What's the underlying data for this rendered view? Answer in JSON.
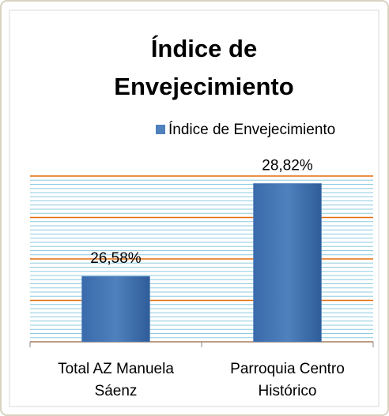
{
  "chart_data": {
    "type": "bar",
    "title": "Índice de Envejecimiento",
    "categories": [
      "Total AZ Manuela Sáenz",
      "Parroquia Centro Histórico"
    ],
    "series": [
      {
        "name": "Índice de Envejecimiento",
        "color": "#4f81bd",
        "values": [
          26.58,
          28.82
        ],
        "value_labels": [
          "26,58%",
          "28,82%"
        ]
      }
    ],
    "ylim": [
      25,
      29
    ],
    "yticks": [
      25,
      26,
      27,
      28,
      29
    ],
    "major_grid_color": "#e46c0a",
    "minor_grid_color": "#8ccbe0",
    "minor_yticks": [
      25,
      25.1,
      25.2,
      25.3,
      25.4,
      25.5,
      25.6,
      25.7,
      25.8,
      25.9,
      26,
      26.1,
      26.2,
      26.3,
      26.4,
      26.5,
      26.6,
      26.7,
      26.8,
      26.9,
      27,
      27.1,
      27.2,
      27.3,
      27.4,
      27.5,
      27.6,
      27.7,
      27.8,
      27.9,
      28,
      28.1,
      28.2,
      28.3,
      28.4,
      28.5,
      28.6,
      28.7,
      28.8,
      28.9,
      29
    ],
    "legend": "top",
    "grid": true
  }
}
